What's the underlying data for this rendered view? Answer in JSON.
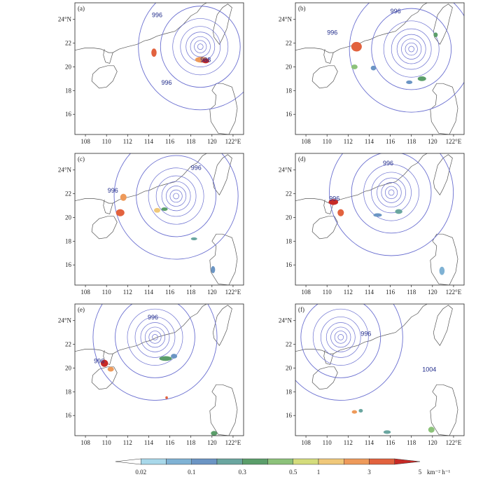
{
  "x_ticks": [
    "108",
    "110",
    "112",
    "114",
    "116",
    "118",
    "120",
    "122°E"
  ],
  "y_ticks": [
    "24°N",
    "22",
    "20",
    "18",
    "16"
  ],
  "lon_range": [
    107,
    123
  ],
  "lat_range": [
    14.3,
    25.4
  ],
  "panels": [
    {
      "label": "(a)",
      "show_yticks": true,
      "show_xticks": true,
      "isobar_labels": [
        {
          "text": "996",
          "lon": 114.8,
          "lat": 24.2
        },
        {
          "text": "988",
          "lon": 119.4,
          "lat": 20.4
        },
        {
          "text": "996",
          "lon": 115.7,
          "lat": 18.5
        }
      ],
      "center": [
        118.9,
        21.7
      ]
    },
    {
      "label": "(b)",
      "show_yticks": false,
      "show_xticks": true,
      "isobar_labels": [
        {
          "text": "996",
          "lon": 116.5,
          "lat": 24.5
        },
        {
          "text": "996",
          "lon": 110.5,
          "lat": 22.7
        }
      ],
      "center": [
        118.0,
        21.5
      ]
    },
    {
      "label": "(c)",
      "show_yticks": true,
      "show_xticks": true,
      "isobar_labels": [
        {
          "text": "996",
          "lon": 118.5,
          "lat": 24.0
        },
        {
          "text": "996",
          "lon": 110.6,
          "lat": 22.1
        }
      ],
      "center": [
        116.6,
        21.8
      ]
    },
    {
      "label": "(d)",
      "show_yticks": false,
      "show_xticks": true,
      "isobar_labels": [
        {
          "text": "996",
          "lon": 115.8,
          "lat": 24.4
        },
        {
          "text": "996",
          "lon": 110.7,
          "lat": 21.4
        }
      ],
      "center": [
        116.1,
        22.1
      ]
    },
    {
      "label": "(e)",
      "show_yticks": true,
      "show_xticks": true,
      "isobar_labels": [
        {
          "text": "996",
          "lon": 114.4,
          "lat": 24.1
        },
        {
          "text": "996",
          "lon": 109.3,
          "lat": 20.4
        }
      ],
      "center": [
        114.6,
        22.6
      ]
    },
    {
      "label": "(f)",
      "show_yticks": false,
      "show_xticks": true,
      "isobar_labels": [
        {
          "text": "996",
          "lon": 113.7,
          "lat": 22.7
        },
        {
          "text": "1004",
          "lon": 119.7,
          "lat": 19.7
        }
      ],
      "center": [
        111.3,
        22.6
      ]
    }
  ],
  "colorbar": {
    "tick_labels": [
      "0.02",
      "0.1",
      "0.3",
      "0.5",
      "1",
      "3",
      "5"
    ],
    "unit": "km⁻² h⁻¹",
    "colors": [
      "#ffffff",
      "#a8d8ea",
      "#7fb2d4",
      "#6b95c4",
      "#6aa6a0",
      "#5b9e6a",
      "#8cc27a",
      "#d4dc7c",
      "#f0c87a",
      "#ee9a5a",
      "#e2623e",
      "#c72a26"
    ]
  },
  "colors": {
    "isobar": "#6a6fd0",
    "coast": "#555555",
    "frame": "#222222"
  }
}
